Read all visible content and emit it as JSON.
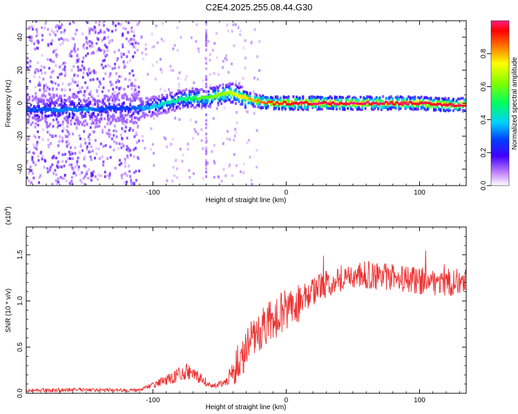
{
  "title": "C2E4.2025.255.08.44.G30",
  "chart_data": [
    {
      "type": "heatmap",
      "xlabel": "Height of straight line (km)",
      "ylabel": "Frequency (Hz)",
      "xlim": [
        -195,
        135
      ],
      "ylim": [
        -50,
        50
      ],
      "x_ticks": [
        -100,
        0,
        100
      ],
      "y_ticks": [
        40,
        20,
        0,
        -20,
        -40
      ],
      "colorbar": {
        "label": "Normalized spectral amplitude",
        "range": [
          0,
          1
        ],
        "ticks": [
          "0.0",
          "0.2",
          "0.4",
          "0.6",
          "0.8"
        ],
        "tick_values": [
          0.0,
          0.2,
          0.4,
          0.6,
          0.8
        ]
      },
      "ridge": [
        {
          "x": -195,
          "y": -4,
          "a": 0.25
        },
        {
          "x": -170,
          "y": -4,
          "a": 0.3
        },
        {
          "x": -150,
          "y": -4,
          "a": 0.3
        },
        {
          "x": -130,
          "y": -3,
          "a": 0.25
        },
        {
          "x": -118,
          "y": -3,
          "a": 0.25
        },
        {
          "x": -110,
          "y": -3,
          "a": 0.3
        },
        {
          "x": -100,
          "y": -2,
          "a": 0.35
        },
        {
          "x": -90,
          "y": 0,
          "a": 0.4
        },
        {
          "x": -80,
          "y": 2,
          "a": 0.45
        },
        {
          "x": -70,
          "y": 3,
          "a": 0.5
        },
        {
          "x": -60,
          "y": 3,
          "a": 0.55
        },
        {
          "x": -50,
          "y": 5,
          "a": 0.6
        },
        {
          "x": -40,
          "y": 6,
          "a": 0.65
        },
        {
          "x": -30,
          "y": 3,
          "a": 0.75
        },
        {
          "x": -20,
          "y": 1,
          "a": 0.8
        },
        {
          "x": -10,
          "y": 0,
          "a": 0.85
        },
        {
          "x": 0,
          "y": 0,
          "a": 0.9
        },
        {
          "x": 20,
          "y": 0,
          "a": 0.95
        },
        {
          "x": 40,
          "y": 0,
          "a": 0.95
        },
        {
          "x": 60,
          "y": 0,
          "a": 0.95
        },
        {
          "x": 80,
          "y": 0,
          "a": 0.95
        },
        {
          "x": 100,
          "y": 0,
          "a": 0.95
        },
        {
          "x": 120,
          "y": -1,
          "a": 0.95
        },
        {
          "x": 135,
          "y": -1,
          "a": 0.95
        }
      ]
    },
    {
      "type": "line",
      "xlabel": "Height of straight line (km)",
      "ylabel": "SNR (10 * v/v)",
      "multiplier": "(x10",
      "multiplier_exp": "4",
      "multiplier_close": ")",
      "xlim": [
        -195,
        135
      ],
      "ylim": [
        0,
        1.8
      ],
      "x_ticks": [
        -100,
        0,
        100
      ],
      "y_ticks": [
        "0.0",
        "0.5",
        "1.0",
        "1.5"
      ],
      "y_tick_values": [
        0.0,
        0.5,
        1.0,
        1.5
      ],
      "color": "#ee3333",
      "envelope": [
        {
          "x": -195,
          "y": 0.03
        },
        {
          "x": -150,
          "y": 0.04
        },
        {
          "x": -110,
          "y": 0.03
        },
        {
          "x": -90,
          "y": 0.12
        },
        {
          "x": -75,
          "y": 0.2
        },
        {
          "x": -62,
          "y": 0.12
        },
        {
          "x": -55,
          "y": 0.06
        },
        {
          "x": -45,
          "y": 0.1
        },
        {
          "x": -35,
          "y": 0.35
        },
        {
          "x": -25,
          "y": 0.6
        },
        {
          "x": -15,
          "y": 0.75
        },
        {
          "x": -5,
          "y": 0.85
        },
        {
          "x": 5,
          "y": 0.95
        },
        {
          "x": 15,
          "y": 1.05
        },
        {
          "x": 25,
          "y": 1.15
        },
        {
          "x": 40,
          "y": 1.25
        },
        {
          "x": 60,
          "y": 1.28
        },
        {
          "x": 80,
          "y": 1.25
        },
        {
          "x": 100,
          "y": 1.22
        },
        {
          "x": 120,
          "y": 1.2
        },
        {
          "x": 135,
          "y": 1.2
        }
      ]
    }
  ]
}
